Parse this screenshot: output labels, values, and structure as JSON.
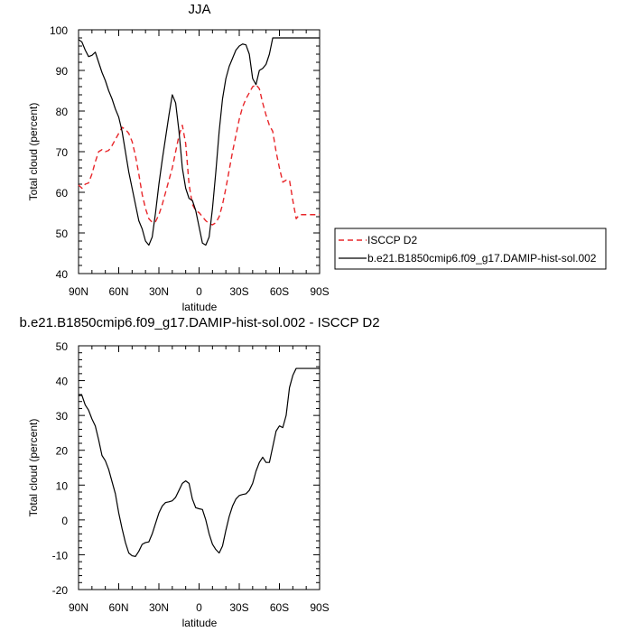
{
  "chart_data": [
    {
      "type": "line",
      "title": "JJA",
      "xlabel": "latitude",
      "ylabel": "Total cloud (percent)",
      "xlim": [
        90,
        -90
      ],
      "ylim": [
        40,
        100
      ],
      "x_ticks": [
        90,
        60,
        30,
        0,
        -30,
        -60,
        -90
      ],
      "x_tick_labels": [
        "90N",
        "60N",
        "30N",
        "0",
        "30S",
        "60S",
        "90S"
      ],
      "y_ticks": [
        40,
        50,
        60,
        70,
        80,
        90,
        100
      ],
      "y_tick_labels": [
        "40",
        "50",
        "60",
        "70",
        "80",
        "90",
        "100"
      ],
      "legend_position": "right",
      "series": [
        {
          "name": "ISCCP D2",
          "color": "#e8262a",
          "dash": "dashed",
          "x": [
            90,
            87.5,
            85,
            82.5,
            80,
            77.5,
            75,
            72.5,
            70,
            67.5,
            65,
            62.5,
            60,
            57.5,
            55,
            52.5,
            50,
            47.5,
            45,
            42.5,
            40,
            37.5,
            35,
            32.5,
            30,
            27.5,
            25,
            22.5,
            20,
            17.5,
            15,
            12.5,
            10,
            7.5,
            5,
            2.5,
            0,
            -2.5,
            -5,
            -7.5,
            -10,
            -12.5,
            -15,
            -17.5,
            -20,
            -22.5,
            -25,
            -27.5,
            -30,
            -32.5,
            -35,
            -37.5,
            -40,
            -42.5,
            -45,
            -47.5,
            -50,
            -52.5,
            -55,
            -57.5,
            -60,
            -62.5,
            -65,
            -67.5,
            -70,
            -72.5,
            -75,
            -77.5,
            -80,
            -82.5,
            -85,
            -87.5,
            -90
          ],
          "values": [
            61.8,
            61.0,
            62.0,
            62.3,
            64.5,
            67.5,
            70.0,
            70.5,
            70.0,
            70.3,
            71.5,
            73.0,
            74.5,
            76.0,
            75.5,
            74.5,
            72.5,
            69.0,
            64.5,
            59.5,
            56.0,
            53.5,
            52.6,
            52.8,
            54.5,
            57.0,
            60.0,
            63.0,
            66.0,
            70.0,
            74.0,
            76.5,
            72.0,
            62.0,
            57.0,
            55.5,
            55.0,
            54.0,
            53.0,
            52.3,
            52.0,
            52.5,
            54.0,
            57.0,
            61.0,
            65.5,
            70.0,
            74.0,
            78.0,
            81.0,
            83.0,
            84.5,
            86.0,
            86.5,
            85.5,
            82.0,
            79.0,
            76.5,
            75.0,
            70.0,
            66.0,
            62.5,
            63.0,
            63.0,
            58.0,
            53.5,
            54.5,
            54.5,
            54.5,
            54.5,
            54.5,
            54.5,
            54.5
          ]
        },
        {
          "name": "b.e21.B1850cmip6.f09_g17.DAMIP-hist-sol.002",
          "color": "#000000",
          "dash": "solid",
          "x": [
            90,
            87.5,
            85,
            82.5,
            80,
            77.5,
            75,
            72.5,
            70,
            67.5,
            65,
            62.5,
            60,
            57.5,
            55,
            52.5,
            50,
            47.5,
            45,
            42.5,
            40,
            37.5,
            35,
            32.5,
            30,
            27.5,
            25,
            22.5,
            20,
            17.5,
            15,
            12.5,
            10,
            7.5,
            5,
            2.5,
            0,
            -2.5,
            -5,
            -7.5,
            -10,
            -12.5,
            -15,
            -17.5,
            -20,
            -22.5,
            -25,
            -27.5,
            -30,
            -32.5,
            -35,
            -37.5,
            -40,
            -42.5,
            -45,
            -47.5,
            -50,
            -52.5,
            -55,
            -57.5,
            -60,
            -62.5,
            -65,
            -67.5,
            -70,
            -72.5,
            -75,
            -77.5,
            -80,
            -82.5,
            -85,
            -87.5,
            -90
          ],
          "values": [
            97.6,
            97.0,
            95.0,
            93.4,
            93.7,
            94.5,
            92.0,
            89.5,
            87.5,
            85.0,
            83.0,
            80.5,
            78.5,
            75.0,
            70.0,
            65.0,
            61.0,
            57.0,
            53.0,
            51.0,
            48.0,
            47.0,
            49.0,
            55.0,
            62.0,
            68.0,
            73.5,
            79.0,
            84.0,
            82.0,
            75.0,
            66.0,
            61.0,
            58.5,
            58.0,
            55.5,
            51.5,
            47.5,
            47.0,
            49.0,
            56.0,
            65.0,
            75.0,
            83.0,
            88.0,
            91.0,
            93.0,
            95.0,
            96.0,
            96.5,
            96.3,
            94.0,
            88.0,
            86.5,
            90.0,
            90.5,
            91.5,
            94.0,
            98.0,
            98.0,
            98.0,
            98.0,
            98.0,
            98.0,
            98.0,
            98.0,
            98.0,
            98.0,
            98.0,
            98.0,
            98.0,
            98.0,
            98.0
          ]
        }
      ]
    },
    {
      "type": "line",
      "title": "b.e21.B1850cmip6.f09_g17.DAMIP-hist-sol.002 - ISCCP D2",
      "xlabel": "latitude",
      "ylabel": "Total cloud (percent)",
      "xlim": [
        90,
        -90
      ],
      "ylim": [
        -20,
        50
      ],
      "x_ticks": [
        90,
        60,
        30,
        0,
        -30,
        -60,
        -90
      ],
      "x_tick_labels": [
        "90N",
        "60N",
        "30N",
        "0",
        "30S",
        "60S",
        "90S"
      ],
      "y_ticks": [
        -20,
        -10,
        0,
        10,
        20,
        30,
        40,
        50
      ],
      "y_tick_labels": [
        "-20",
        "-10",
        "0",
        "10",
        "20",
        "30",
        "40",
        "50"
      ],
      "series": [
        {
          "color": "#000000",
          "dash": "solid",
          "x": [
            90,
            87.5,
            85,
            82.5,
            80,
            77.5,
            75,
            72.5,
            70,
            67.5,
            65,
            62.5,
            60,
            57.5,
            55,
            52.5,
            50,
            47.5,
            45,
            42.5,
            40,
            37.5,
            35,
            32.5,
            30,
            27.5,
            25,
            22.5,
            20,
            17.5,
            15,
            12.5,
            10,
            7.5,
            5,
            2.5,
            0,
            -2.5,
            -5,
            -7.5,
            -10,
            -12.5,
            -15,
            -17.5,
            -20,
            -22.5,
            -25,
            -27.5,
            -30,
            -32.5,
            -35,
            -37.5,
            -40,
            -42.5,
            -45,
            -47.5,
            -50,
            -52.5,
            -55,
            -57.5,
            -60,
            -62.5,
            -65,
            -67.5,
            -70,
            -72.5,
            -75,
            -77.5,
            -80,
            -82.5,
            -85,
            -87.5,
            -90
          ],
          "values": [
            35.7,
            35.8,
            33.0,
            31.5,
            29.0,
            27.0,
            23.0,
            18.5,
            17.0,
            14.5,
            11.0,
            7.5,
            2.0,
            -2.5,
            -6.5,
            -9.5,
            -10.3,
            -10.5,
            -9.0,
            -7.0,
            -6.5,
            -6.3,
            -4.0,
            -1.0,
            2.0,
            4.0,
            5.0,
            5.2,
            5.5,
            6.5,
            8.5,
            10.5,
            11.2,
            10.5,
            6.0,
            3.5,
            3.2,
            3.0,
            0.0,
            -4.0,
            -7.0,
            -8.5,
            -9.5,
            -7.5,
            -3.0,
            1.0,
            4.0,
            6.0,
            7.0,
            7.3,
            7.5,
            8.5,
            10.5,
            14.0,
            16.5,
            18.0,
            16.5,
            16.5,
            21.0,
            25.5,
            27.0,
            26.5,
            30.0,
            38.0,
            41.5,
            43.5,
            43.5,
            43.5,
            43.5,
            43.5,
            43.5,
            43.5,
            43.5
          ]
        }
      ]
    }
  ]
}
